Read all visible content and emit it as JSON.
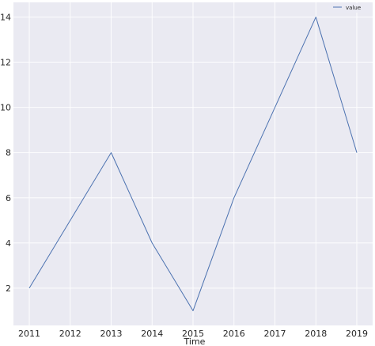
{
  "chart_data": {
    "type": "line",
    "title": "",
    "xlabel": "Time",
    "ylabel": "",
    "x": [
      "2011",
      "2012",
      "2013",
      "2014",
      "2015",
      "2016",
      "2017",
      "2018",
      "2019"
    ],
    "series": [
      {
        "name": "value",
        "values": [
          2,
          5,
          8,
          4,
          1,
          6,
          10,
          14,
          8
        ]
      }
    ],
    "yticks": [
      "2",
      "4",
      "6",
      "8",
      "10",
      "12",
      "14"
    ],
    "ylim": [
      0.35,
      14.65
    ],
    "grid": true,
    "legend_position": "top-right",
    "colors": {
      "background": "#eaeaf2",
      "grid": "#ffffff",
      "line": "#4c72b0",
      "text": "#262626"
    }
  }
}
